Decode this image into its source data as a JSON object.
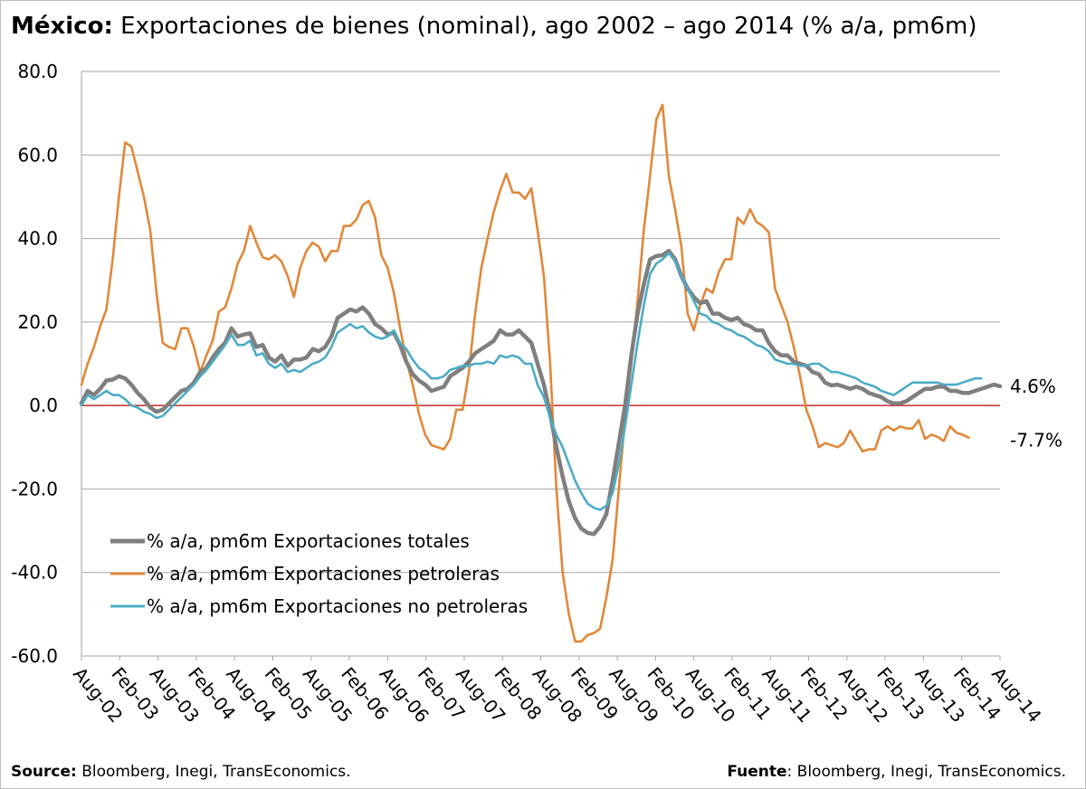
{
  "title": {
    "bold": "México:",
    "rest": " Exportaciones de bienes (nominal), ago 2002 – ago 2014 (% a/a, pm6m)"
  },
  "footer": {
    "left_bold": "Source:",
    "left_text": " Bloomberg, Inegi, TransEconomics.",
    "right_bold": "Fuente",
    "right_text": ": Bloomberg, Inegi, TransEconomics."
  },
  "colors": {
    "total": "#7f7f7f",
    "petroleras": "#e0883a",
    "no_petroleras": "#4bacc6",
    "zero_line": "#c00000",
    "grid": "#a6a6a6"
  },
  "chart_data": {
    "type": "line",
    "ylim": [
      -60,
      80
    ],
    "yticks": [
      80,
      60,
      40,
      20,
      0,
      -20,
      -40,
      -60
    ],
    "ytick_labels": [
      "80.0",
      "60.0",
      "40.0",
      "20.0",
      "0.0",
      "-20.0",
      "-40.0",
      "-60.0"
    ],
    "xtick_labels": [
      "Aug-02",
      "Feb-03",
      "Aug-03",
      "Feb-04",
      "Aug-04",
      "Feb-05",
      "Aug-05",
      "Feb-06",
      "Aug-06",
      "Feb-07",
      "Aug-07",
      "Feb-08",
      "Aug-08",
      "Feb-09",
      "Aug-09",
      "Feb-10",
      "Aug-10",
      "Feb-11",
      "Aug-11",
      "Feb-12",
      "Aug-12",
      "Feb-13",
      "Aug-13",
      "Feb-14",
      "Aug-14"
    ],
    "grid": "horizontal",
    "legend_position": "bottom-left",
    "end_labels": [
      "4.6%",
      "-7.7%"
    ],
    "series": [
      {
        "name": "% a/a, pm6m Exportaciones totales",
        "key": "total",
        "values": [
          0.5,
          3.5,
          2.5,
          4.0,
          6.0,
          6.2,
          7.0,
          6.5,
          5.0,
          3.0,
          1.5,
          -0.5,
          -1.5,
          -1.0,
          0.5,
          2.0,
          3.5,
          4.0,
          5.5,
          8.0,
          9.0,
          11.5,
          13.5,
          15.0,
          18.5,
          16.5,
          17.0,
          17.3,
          14.0,
          14.5,
          11.5,
          10.5,
          12.0,
          9.5,
          11.0,
          11.0,
          11.5,
          13.5,
          13.0,
          14.0,
          16.5,
          21.0,
          22.0,
          23.0,
          22.5,
          23.5,
          22.0,
          19.5,
          18.5,
          17.0,
          17.5,
          14.5,
          10.5,
          7.5,
          6.0,
          5.0,
          3.5,
          4.0,
          4.5,
          7.0,
          8.0,
          9.0,
          10.5,
          12.5,
          13.5,
          14.5,
          15.5,
          18.0,
          17.0,
          17.0,
          18.0,
          16.5,
          15.0,
          10.0,
          5.0,
          -2.0,
          -10.0,
          -17.0,
          -23.0,
          -27.0,
          -29.5,
          -30.5,
          -30.8,
          -29.0,
          -26.0,
          -18.0,
          -9.0,
          0.0,
          12.0,
          22.0,
          29.0,
          35.0,
          35.8,
          36.0,
          37.0,
          35.0,
          31.0,
          28.0,
          26.0,
          24.5,
          25.0,
          22.0,
          22.0,
          21.0,
          20.5,
          21.0,
          19.5,
          19.0,
          18.0,
          18.0,
          15.0,
          13.0,
          12.0,
          12.0,
          10.5,
          10.0,
          9.5,
          8.0,
          7.5,
          5.5,
          4.8,
          5.0,
          4.5,
          4.0,
          4.5,
          4.0,
          3.0,
          2.5,
          2.0,
          1.0,
          0.5,
          0.5,
          1.0,
          2.0,
          3.0,
          4.0,
          4.0,
          4.5,
          4.5,
          3.5,
          3.5,
          3.0,
          3.0,
          3.5,
          4.0,
          4.5,
          5.0,
          4.6
        ]
      },
      {
        "name": "% a/a, pm6m Exportaciones petroleras",
        "key": "petroleras",
        "values": [
          5.0,
          10.0,
          14.0,
          19.0,
          23.0,
          35.0,
          50.0,
          63.0,
          62.0,
          56.0,
          50.0,
          42.0,
          27.0,
          15.0,
          14.0,
          13.5,
          18.5,
          18.5,
          14.0,
          8.0,
          12.0,
          15.5,
          22.5,
          23.5,
          28.0,
          34.0,
          37.0,
          43.0,
          39.0,
          35.5,
          35.0,
          36.0,
          34.5,
          31.0,
          26.0,
          33.0,
          37.0,
          39.0,
          38.0,
          34.5,
          37.0,
          37.0,
          43.0,
          43.0,
          44.5,
          48.0,
          49.0,
          45.0,
          36.0,
          33.0,
          27.0,
          18.5,
          11.0,
          5.0,
          -2.0,
          -7.0,
          -9.5,
          -10.0,
          -10.5,
          -8.0,
          -1.0,
          -1.0,
          8.0,
          22.0,
          33.0,
          40.0,
          46.5,
          51.5,
          55.5,
          51.0,
          51.0,
          49.5,
          52.0,
          42.0,
          31.0,
          10.0,
          -20.0,
          -40.0,
          -50.0,
          -56.5,
          -56.5,
          -55.0,
          -54.5,
          -53.5,
          -46.0,
          -37.0,
          -20.0,
          -3.0,
          10.0,
          25.0,
          42.0,
          55.0,
          68.5,
          72.0,
          55.0,
          47.0,
          38.0,
          22.0,
          18.0,
          24.0,
          28.0,
          27.0,
          32.0,
          35.0,
          35.0,
          45.0,
          43.5,
          47.0,
          44.0,
          43.0,
          41.5,
          28.0,
          24.0,
          20.0,
          14.0,
          7.0,
          -1.0,
          -5.0,
          -10.0,
          -9.0,
          -9.5,
          -10.0,
          -9.0,
          -6.0,
          -8.5,
          -11.0,
          -10.5,
          -10.5,
          -6.0,
          -5.0,
          -6.0,
          -5.0,
          -5.5,
          -5.5,
          -3.5,
          -8.0,
          -7.0,
          -7.5,
          -8.5,
          -5.0,
          -6.5,
          -7.0,
          -7.7
        ]
      },
      {
        "name": "% a/a, pm6m Exportaciones no petroleras",
        "key": "no_petroleras",
        "values": [
          0.0,
          2.5,
          1.5,
          2.5,
          3.5,
          2.5,
          2.5,
          1.5,
          0.0,
          -0.5,
          -1.5,
          -2.0,
          -3.0,
          -2.5,
          -1.0,
          0.5,
          2.0,
          3.5,
          5.0,
          7.0,
          8.5,
          10.5,
          12.5,
          14.5,
          17.0,
          14.5,
          14.5,
          15.5,
          12.0,
          12.5,
          10.0,
          9.0,
          10.0,
          8.0,
          8.5,
          8.0,
          9.0,
          10.0,
          10.5,
          11.5,
          14.0,
          17.5,
          18.5,
          19.5,
          18.5,
          19.0,
          17.5,
          16.5,
          16.0,
          16.5,
          18.0,
          15.0,
          13.5,
          11.0,
          9.0,
          8.0,
          6.5,
          6.5,
          7.0,
          8.5,
          9.0,
          9.5,
          9.5,
          10.0,
          10.0,
          10.5,
          10.0,
          12.0,
          11.5,
          12.0,
          11.5,
          10.0,
          10.0,
          5.0,
          2.0,
          -3.0,
          -7.0,
          -10.0,
          -14.0,
          -18.0,
          -21.0,
          -23.5,
          -24.5,
          -25.0,
          -24.0,
          -21.0,
          -14.0,
          -5.0,
          5.0,
          15.0,
          24.0,
          31.5,
          34.0,
          35.0,
          36.5,
          34.5,
          31.0,
          28.0,
          25.0,
          22.0,
          21.5,
          20.0,
          19.5,
          18.5,
          18.0,
          17.0,
          16.5,
          15.5,
          14.5,
          14.0,
          13.0,
          11.0,
          10.5,
          10.0,
          10.0,
          9.5,
          9.5,
          10.0,
          10.0,
          9.0,
          8.0,
          8.0,
          7.5,
          7.0,
          6.5,
          5.5,
          5.0,
          4.5,
          3.5,
          3.0,
          2.5,
          3.5,
          4.5,
          5.5,
          5.5,
          5.5,
          5.5,
          5.5,
          5.0,
          5.0,
          5.0,
          5.5,
          6.0,
          6.5,
          6.5
        ]
      }
    ]
  }
}
